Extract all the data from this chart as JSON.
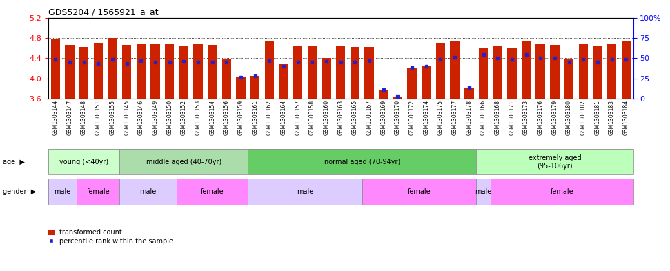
{
  "title": "GDS5204 / 1565921_a_at",
  "samples": [
    "GSM1303144",
    "GSM1303147",
    "GSM1303148",
    "GSM1303151",
    "GSM1303155",
    "GSM1303145",
    "GSM1303146",
    "GSM1303149",
    "GSM1303150",
    "GSM1303152",
    "GSM1303153",
    "GSM1303154",
    "GSM1303156",
    "GSM1303159",
    "GSM1303161",
    "GSM1303162",
    "GSM1303164",
    "GSM1303157",
    "GSM1303158",
    "GSM1303160",
    "GSM1303163",
    "GSM1303165",
    "GSM1303167",
    "GSM1303169",
    "GSM1303170",
    "GSM1303172",
    "GSM1303174",
    "GSM1303175",
    "GSM1303177",
    "GSM1303178",
    "GSM1303166",
    "GSM1303168",
    "GSM1303171",
    "GSM1303173",
    "GSM1303176",
    "GSM1303179",
    "GSM1303180",
    "GSM1303182",
    "GSM1303181",
    "GSM1303183",
    "GSM1303184"
  ],
  "bar_values": [
    4.78,
    4.66,
    4.62,
    4.7,
    4.8,
    4.66,
    4.68,
    4.68,
    4.68,
    4.65,
    4.68,
    4.66,
    4.38,
    4.02,
    4.05,
    4.73,
    4.28,
    4.65,
    4.65,
    4.4,
    4.64,
    4.62,
    4.62,
    3.78,
    3.65,
    4.22,
    4.25,
    4.7,
    4.75,
    3.82,
    4.6,
    4.65,
    4.6,
    4.73,
    4.68,
    4.67,
    4.38,
    4.68,
    4.65,
    4.68,
    4.75
  ],
  "percentile_values": [
    4.38,
    4.32,
    4.32,
    4.3,
    4.38,
    4.3,
    4.35,
    4.32,
    4.32,
    4.34,
    4.32,
    4.32,
    4.32,
    4.02,
    4.05,
    4.35,
    4.25,
    4.32,
    4.32,
    4.34,
    4.32,
    4.32,
    4.35,
    3.78,
    3.65,
    4.22,
    4.25,
    4.38,
    4.42,
    3.82,
    4.48,
    4.4,
    4.38,
    4.48,
    4.4,
    4.4,
    4.32,
    4.38,
    4.32,
    4.38,
    4.38
  ],
  "ylim": [
    3.6,
    5.2
  ],
  "yticks_left": [
    3.6,
    4.0,
    4.4,
    4.8,
    5.2
  ],
  "yticks_right_pos": [
    3.6,
    4.0,
    4.4,
    4.8,
    5.2
  ],
  "yticks_right_labels": [
    "0",
    "25",
    "50",
    "75",
    "100%"
  ],
  "grid_lines": [
    4.0,
    4.4,
    4.8
  ],
  "bar_color": "#cc2200",
  "dot_color": "#2222cc",
  "age_groups": [
    {
      "label": "young (<40yr)",
      "start": 0,
      "end": 5,
      "color": "#ccffcc"
    },
    {
      "label": "middle aged (40-70yr)",
      "start": 5,
      "end": 14,
      "color": "#aaddaa"
    },
    {
      "label": "normal aged (70-94yr)",
      "start": 14,
      "end": 30,
      "color": "#66cc66"
    },
    {
      "label": "extremely aged\n(95-106yr)",
      "start": 30,
      "end": 41,
      "color": "#bbffbb"
    }
  ],
  "gender_groups": [
    {
      "label": "male",
      "start": 0,
      "end": 2,
      "color": "#ddccff"
    },
    {
      "label": "female",
      "start": 2,
      "end": 5,
      "color": "#ff88ff"
    },
    {
      "label": "male",
      "start": 5,
      "end": 9,
      "color": "#ddccff"
    },
    {
      "label": "female",
      "start": 9,
      "end": 14,
      "color": "#ff88ff"
    },
    {
      "label": "male",
      "start": 14,
      "end": 22,
      "color": "#ddccff"
    },
    {
      "label": "female",
      "start": 22,
      "end": 30,
      "color": "#ff88ff"
    },
    {
      "label": "male",
      "start": 30,
      "end": 31,
      "color": "#ddccff"
    },
    {
      "label": "female",
      "start": 31,
      "end": 41,
      "color": "#ff88ff"
    }
  ],
  "figsize": [
    9.71,
    3.93
  ],
  "dpi": 100
}
